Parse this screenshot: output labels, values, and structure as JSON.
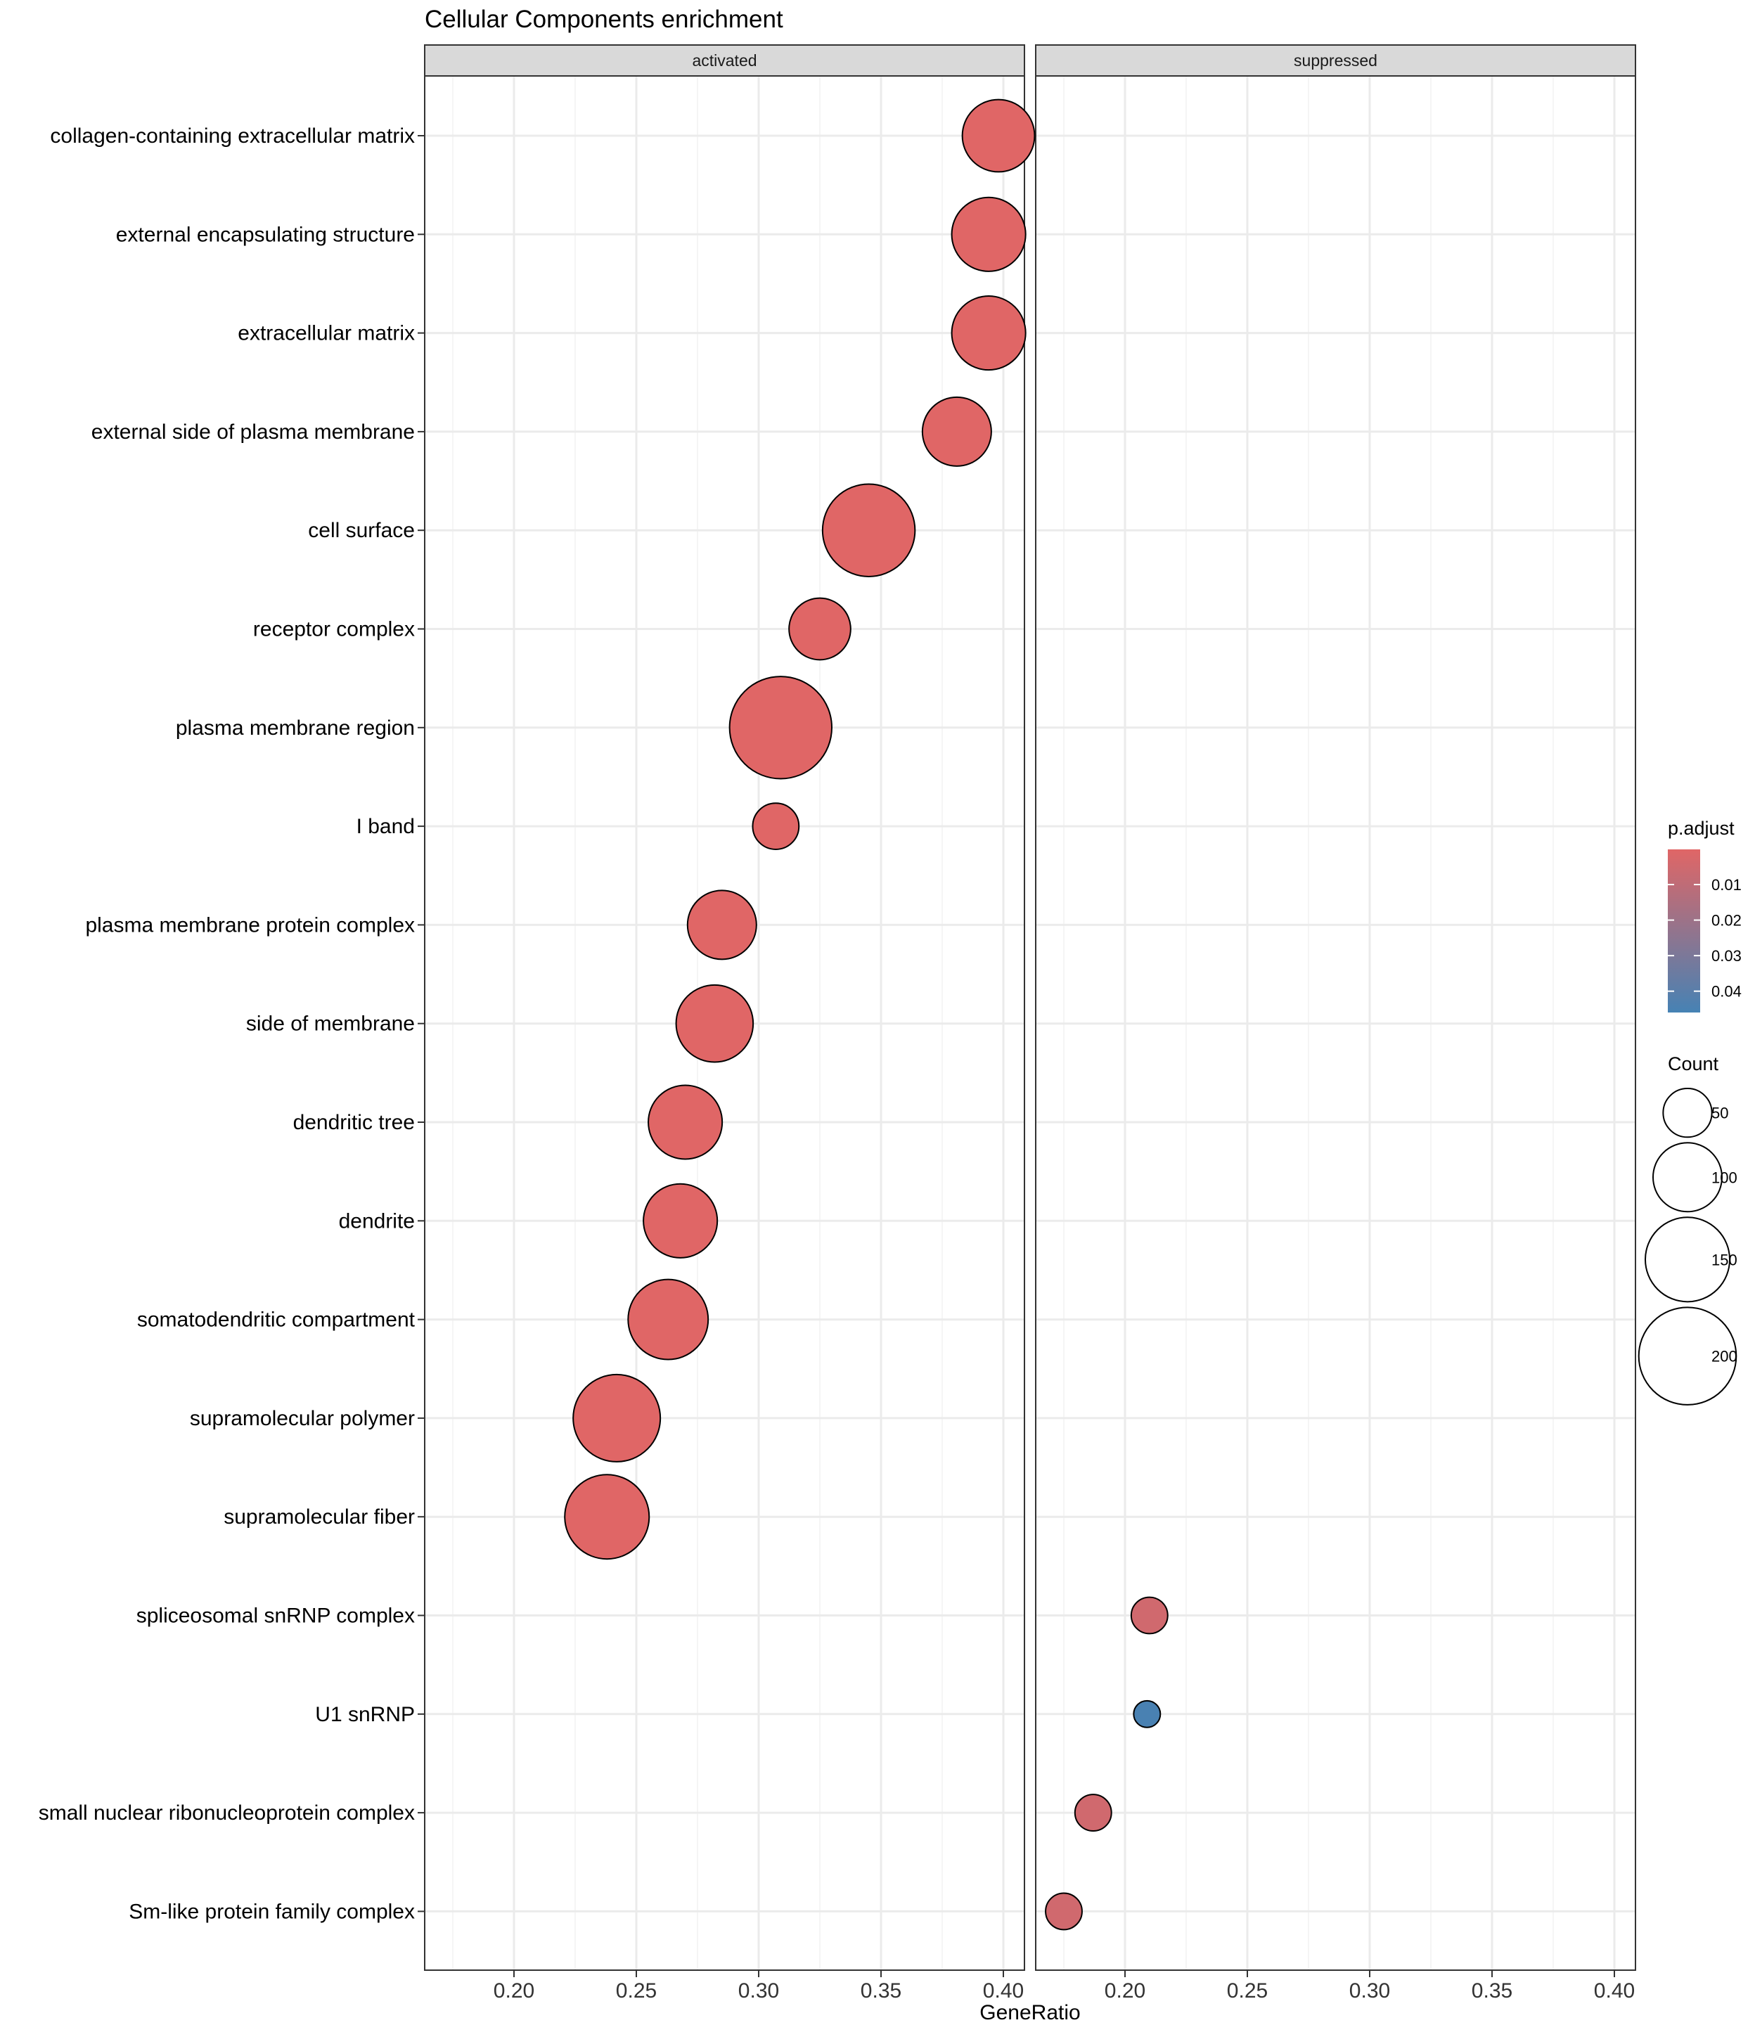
{
  "chart_data": {
    "type": "scatter",
    "title": "Cellular Components enrichment",
    "xlabel": "GeneRatio",
    "ylabel": "",
    "xlim": [
      0.163,
      0.408
    ],
    "x_ticks": [
      0.2,
      0.25,
      0.3,
      0.35,
      0.4
    ],
    "x_tick_labels": [
      "0.20",
      "0.25",
      "0.30",
      "0.35",
      "0.40"
    ],
    "grid": true,
    "facets": [
      "activated",
      "suppressed"
    ],
    "categories": [
      "collagen-containing extracellular matrix",
      "external encapsulating structure",
      "extracellular matrix",
      "external side of plasma membrane",
      "cell surface",
      "receptor complex",
      "plasma membrane region",
      "I band",
      "plasma membrane protein complex",
      "side of membrane",
      "dendritic tree",
      "dendrite",
      "somatodendritic compartment",
      "supramolecular polymer",
      "supramolecular fiber",
      "spliceosomal snRNP complex",
      "U1 snRNP",
      "small nuclear ribonucleoprotein complex",
      "Sm-like protein family complex"
    ],
    "points": [
      {
        "facet": "activated",
        "term": "collagen-containing extracellular matrix",
        "x": 0.398,
        "count": 110,
        "p_adjust": 0.0001
      },
      {
        "facet": "activated",
        "term": "external encapsulating structure",
        "x": 0.394,
        "count": 115,
        "p_adjust": 0.0001
      },
      {
        "facet": "activated",
        "term": "extracellular matrix",
        "x": 0.394,
        "count": 115,
        "p_adjust": 0.0001
      },
      {
        "facet": "activated",
        "term": "external side of plasma membrane",
        "x": 0.381,
        "count": 100,
        "p_adjust": 0.0001
      },
      {
        "facet": "activated",
        "term": "cell surface",
        "x": 0.345,
        "count": 180,
        "p_adjust": 0.0001
      },
      {
        "facet": "activated",
        "term": "receptor complex",
        "x": 0.325,
        "count": 80,
        "p_adjust": 0.0001
      },
      {
        "facet": "activated",
        "term": "plasma membrane region",
        "x": 0.309,
        "count": 220,
        "p_adjust": 0.0001
      },
      {
        "facet": "activated",
        "term": "I band",
        "x": 0.307,
        "count": 45,
        "p_adjust": 0.0001
      },
      {
        "facet": "activated",
        "term": "plasma membrane protein complex",
        "x": 0.285,
        "count": 100,
        "p_adjust": 0.0001
      },
      {
        "facet": "activated",
        "term": "side of membrane",
        "x": 0.282,
        "count": 125,
        "p_adjust": 0.0001
      },
      {
        "facet": "activated",
        "term": "dendritic tree",
        "x": 0.27,
        "count": 115,
        "p_adjust": 0.0001
      },
      {
        "facet": "activated",
        "term": "dendrite",
        "x": 0.268,
        "count": 115,
        "p_adjust": 0.0001
      },
      {
        "facet": "activated",
        "term": "somatodendritic compartment",
        "x": 0.263,
        "count": 135,
        "p_adjust": 0.0001
      },
      {
        "facet": "activated",
        "term": "supramolecular polymer",
        "x": 0.242,
        "count": 160,
        "p_adjust": 0.0001
      },
      {
        "facet": "activated",
        "term": "supramolecular fiber",
        "x": 0.238,
        "count": 150,
        "p_adjust": 0.0001
      },
      {
        "facet": "suppressed",
        "term": "spliceosomal snRNP complex",
        "x": 0.21,
        "count": 28,
        "p_adjust": 0.005
      },
      {
        "facet": "suppressed",
        "term": "U1 snRNP",
        "x": 0.209,
        "count": 15,
        "p_adjust": 0.045
      },
      {
        "facet": "suppressed",
        "term": "small nuclear ribonucleoprotein complex",
        "x": 0.187,
        "count": 28,
        "p_adjust": 0.005
      },
      {
        "facet": "suppressed",
        "term": "Sm-like protein family complex",
        "x": 0.175,
        "count": 28,
        "p_adjust": 0.005
      }
    ],
    "color_legend": {
      "title": "p.adjust",
      "min": 0.0001,
      "max": 0.046,
      "ticks": [
        0.01,
        0.02,
        0.03,
        0.04
      ],
      "tick_labels": [
        "0.01",
        "0.02",
        "0.03",
        "0.04"
      ],
      "low_color": "#e06666",
      "high_color": "#4682b4"
    },
    "size_legend": {
      "title": "Count",
      "values": [
        50,
        100,
        150,
        200
      ],
      "labels": [
        "50",
        "100",
        "150",
        "200"
      ]
    },
    "legend_position": "right"
  }
}
